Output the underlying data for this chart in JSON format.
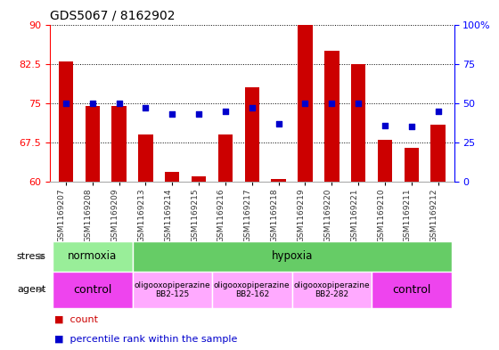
{
  "title": "GDS5067 / 8162902",
  "samples": [
    "GSM1169207",
    "GSM1169208",
    "GSM1169209",
    "GSM1169213",
    "GSM1169214",
    "GSM1169215",
    "GSM1169216",
    "GSM1169217",
    "GSM1169218",
    "GSM1169219",
    "GSM1169220",
    "GSM1169221",
    "GSM1169210",
    "GSM1169211",
    "GSM1169212"
  ],
  "count_values": [
    83,
    74.5,
    74.5,
    69,
    62,
    61,
    69,
    78,
    60.5,
    90,
    85,
    82.5,
    68,
    66.5,
    71
  ],
  "percentile_values": [
    50,
    50,
    50,
    47,
    43,
    43,
    45,
    47,
    37,
    50,
    50,
    50,
    36,
    35,
    45
  ],
  "ylim_left": [
    60,
    90
  ],
  "ylim_right": [
    0,
    100
  ],
  "yticks_left": [
    60,
    67.5,
    75,
    82.5,
    90
  ],
  "yticks_right": [
    0,
    25,
    50,
    75,
    100
  ],
  "bar_color": "#cc0000",
  "dot_color": "#0000cc",
  "stress_groups": [
    {
      "label": "normoxia",
      "start": 0,
      "end": 3,
      "color": "#99ee99"
    },
    {
      "label": "hypoxia",
      "start": 3,
      "end": 15,
      "color": "#66cc66"
    }
  ],
  "agent_groups": [
    {
      "label": "control",
      "start": 0,
      "end": 3,
      "color": "#ee44ee"
    },
    {
      "label": "oligooxopiperazine\nBB2-125",
      "start": 3,
      "end": 6,
      "color": "#ffaaff"
    },
    {
      "label": "oligooxopiperazine\nBB2-162",
      "start": 6,
      "end": 9,
      "color": "#ffaaff"
    },
    {
      "label": "oligooxopiperazine\nBB2-282",
      "start": 9,
      "end": 12,
      "color": "#ffaaff"
    },
    {
      "label": "control",
      "start": 12,
      "end": 15,
      "color": "#ee44ee"
    }
  ],
  "fig_width": 5.6,
  "fig_height": 3.93,
  "dpi": 100
}
